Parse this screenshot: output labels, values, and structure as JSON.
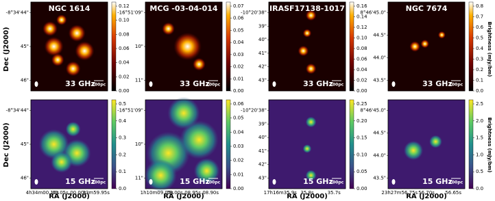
{
  "axis_labels": {
    "y": "Dec (J2000)",
    "x": "RA (J2000)",
    "colorbar": "Brightness (mJy/bm)"
  },
  "rows": [
    {
      "frequency": "33 GHz",
      "scale": "100pc",
      "panels": [
        {
          "name": "NGC 1614",
          "colorbar_ticks": [
            "0.00",
            "0.02",
            "0.04",
            "0.06",
            "0.08",
            "0.10",
            "0.12"
          ],
          "dec_ticks": [
            "-8°34'44\"",
            "45\"",
            "46\""
          ]
        },
        {
          "name": "MCG -03-04-014",
          "colorbar_ticks": [
            "0.00",
            "0.01",
            "0.02",
            "0.03",
            "0.04",
            "0.05",
            "0.06",
            "0.07"
          ],
          "dec_ticks": [
            "-16°51'09\"",
            "10\"",
            "11\""
          ]
        },
        {
          "name": "IRASF17138-1017",
          "colorbar_ticks": [
            "0.00",
            "0.02",
            "0.04",
            "0.06",
            "0.08",
            "0.10",
            "0.12",
            "0.14",
            "0.16"
          ],
          "dec_ticks": [
            "-10°20'38\"",
            "39\"",
            "40\"",
            "41\"",
            "42\"",
            "43\""
          ]
        },
        {
          "name": "NGC 7674",
          "colorbar_ticks": [
            "0.0",
            "0.1",
            "0.2",
            "0.3",
            "0.4",
            "0.5",
            "0.6",
            "0.7",
            "0.8"
          ],
          "dec_ticks": [
            "8°46'45.0\"",
            "44.5\"",
            "44.0\"",
            "43.5\""
          ]
        }
      ]
    },
    {
      "frequency": "15 GHz",
      "scale": "100pc",
      "panels": [
        {
          "colorbar_ticks": [
            "0.0",
            "0.1",
            "0.2",
            "0.3",
            "0.4",
            "0.5"
          ],
          "dec_ticks": [
            "-8°34'44\"",
            "45\"",
            "46\""
          ],
          "ra_ticks": [
            "4h34m00.10s",
            "00.05s",
            "00.00s",
            "33m59.95s"
          ]
        },
        {
          "colorbar_ticks": [
            "0.00",
            "0.01",
            "0.02",
            "0.03",
            "0.04",
            "0.05",
            "0.06"
          ],
          "dec_ticks": [
            "-16°51'09\"",
            "10\"",
            "11\""
          ],
          "ra_ticks": [
            "1h10m09.05s",
            "09.00s",
            "08.95s",
            "08.90s"
          ]
        },
        {
          "colorbar_ticks": [
            "0.00",
            "0.05",
            "0.10",
            "0.15",
            "0.20",
            "0.25"
          ],
          "dec_ticks": [
            "-10°20'38\"",
            "39\"",
            "40\"",
            "41\"",
            "42\"",
            "43\""
          ],
          "ra_ticks": [
            "17h16m35.9s",
            "35.8s",
            "35.7s"
          ]
        },
        {
          "colorbar_ticks": [
            "0.0",
            "0.5",
            "1.0",
            "1.5",
            "2.0",
            "2.5"
          ],
          "dec_ticks": [
            "8°46'45.0\"",
            "44.5\"",
            "44.0\"",
            "43.5\""
          ],
          "ra_ticks": [
            "23h27m56.75s",
            "56.70s",
            "56.65s"
          ]
        }
      ]
    }
  ]
}
